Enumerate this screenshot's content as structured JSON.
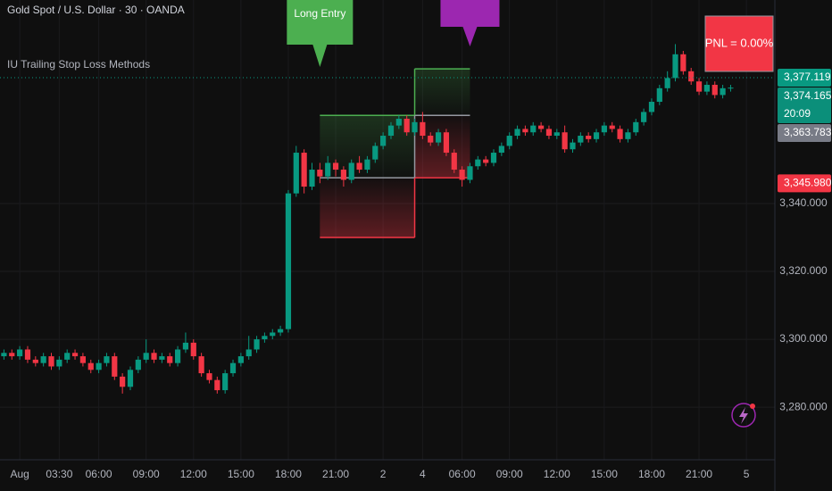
{
  "chart_data": {
    "type": "candlestick",
    "title": "Gold Spot / U.S. Dollar · 30 · OANDA",
    "indicator": "IU Trailing Stop Loss Methods",
    "up_color": "#089981",
    "down_color": "#f23645",
    "open": [
      3295,
      3296,
      3295,
      3297,
      3294,
      3293,
      3295,
      3292,
      3294,
      3296,
      3295,
      3293,
      3291,
      3293,
      3295,
      3289,
      3286,
      3291,
      3294,
      3296,
      3294,
      3295,
      3293,
      3297,
      3299,
      3295,
      3290,
      3288,
      3285,
      3290,
      3293,
      3295,
      3297,
      3300,
      3301,
      3302,
      3303,
      3343,
      3355,
      3345,
      3350,
      3348,
      3352,
      3350,
      3347,
      3352,
      3350,
      3353,
      3357,
      3360,
      3363,
      3365,
      3361,
      3364,
      3360,
      3358,
      3361,
      3355,
      3350,
      3347,
      3351,
      3353,
      3352,
      3355,
      3357,
      3360,
      3362,
      3361,
      3363,
      3362,
      3360,
      3361,
      3356,
      3358,
      3360,
      3359,
      3361,
      3363,
      3362,
      3359,
      3361,
      3364,
      3367,
      3370,
      3374,
      3377,
      3384,
      3379,
      3376,
      3373,
      3375,
      3372,
      3374
    ],
    "high": [
      3297,
      3297,
      3298,
      3298,
      3295,
      3296,
      3296,
      3295,
      3297,
      3297,
      3296,
      3294,
      3294,
      3296,
      3296,
      3290,
      3292,
      3295,
      3300,
      3297,
      3296,
      3296,
      3298,
      3302,
      3300,
      3296,
      3291,
      3289,
      3291,
      3294,
      3296,
      3301,
      3301,
      3302,
      3303,
      3304,
      3344,
      3357,
      3356,
      3352,
      3352,
      3354,
      3353,
      3351,
      3353,
      3354,
      3354,
      3358,
      3361,
      3364,
      3366,
      3366,
      3365,
      3367,
      3361,
      3362,
      3362,
      3356,
      3351,
      3352,
      3354,
      3354,
      3356,
      3358,
      3361,
      3363,
      3363,
      3364,
      3364,
      3363,
      3362,
      3363,
      3359,
      3361,
      3361,
      3362,
      3364,
      3364,
      3363,
      3362,
      3365,
      3368,
      3371,
      3375,
      3379,
      3387,
      3385,
      3380,
      3377,
      3376,
      3376,
      3375,
      3375
    ],
    "low": [
      3294,
      3294,
      3294,
      3293,
      3292,
      3292,
      3291,
      3291,
      3293,
      3294,
      3292,
      3290,
      3290,
      3292,
      3288,
      3284,
      3285,
      3290,
      3293,
      3293,
      3293,
      3292,
      3292,
      3296,
      3294,
      3289,
      3287,
      3284,
      3284,
      3289,
      3292,
      3294,
      3296,
      3299,
      3300,
      3301,
      3302,
      3342,
      3343,
      3344,
      3346,
      3347,
      3348,
      3345,
      3346,
      3349,
      3349,
      3352,
      3356,
      3359,
      3362,
      3360,
      3360,
      3359,
      3357,
      3357,
      3354,
      3349,
      3345,
      3346,
      3350,
      3351,
      3351,
      3354,
      3356,
      3359,
      3360,
      3360,
      3361,
      3359,
      3359,
      3355,
      3355,
      3357,
      3358,
      3358,
      3360,
      3361,
      3358,
      3358,
      3360,
      3363,
      3366,
      3369,
      3373,
      3376,
      3378,
      3375,
      3372,
      3372,
      3371,
      3371,
      3373
    ],
    "close": [
      3296,
      3295,
      3297,
      3294,
      3293,
      3295,
      3292,
      3294,
      3296,
      3295,
      3293,
      3291,
      3293,
      3295,
      3289,
      3286,
      3291,
      3294,
      3296,
      3294,
      3295,
      3293,
      3297,
      3299,
      3295,
      3290,
      3288,
      3285,
      3290,
      3293,
      3295,
      3297,
      3300,
      3301,
      3302,
      3303,
      3343,
      3355,
      3345,
      3350,
      3348,
      3352,
      3350,
      3347,
      3352,
      3350,
      3353,
      3357,
      3360,
      3363,
      3365,
      3361,
      3364,
      3360,
      3358,
      3361,
      3355,
      3350,
      3347,
      3351,
      3353,
      3352,
      3355,
      3357,
      3360,
      3362,
      3361,
      3363,
      3362,
      3360,
      3361,
      3356,
      3358,
      3360,
      3359,
      3361,
      3363,
      3362,
      3359,
      3361,
      3364,
      3367,
      3370,
      3374,
      3377,
      3384,
      3379,
      3376,
      3373,
      3375,
      3372,
      3374,
      3374.165
    ],
    "xlim": [
      -0.5,
      97.6
    ],
    "xticks": [
      {
        "value": 2,
        "label": "Aug"
      },
      {
        "value": 7,
        "label": "03:30"
      },
      {
        "value": 12,
        "label": "06:00"
      },
      {
        "value": 18,
        "label": "09:00"
      },
      {
        "value": 24,
        "label": "12:00"
      },
      {
        "value": 30,
        "label": "15:00"
      },
      {
        "value": 36,
        "label": "18:00"
      },
      {
        "value": 42,
        "label": "21:00"
      },
      {
        "value": 48,
        "label": "2"
      },
      {
        "value": 53,
        "label": "4"
      },
      {
        "value": 58,
        "label": "06:00"
      },
      {
        "value": 64,
        "label": "09:00"
      },
      {
        "value": 70,
        "label": "12:00"
      },
      {
        "value": 76,
        "label": "15:00"
      },
      {
        "value": 82,
        "label": "18:00"
      },
      {
        "value": 88,
        "label": "21:00"
      },
      {
        "value": 94,
        "label": "5"
      }
    ],
    "ylim": [
      3264.5,
      3400
    ],
    "yticks": [
      {
        "value": 3280,
        "label": "3,280.000"
      },
      {
        "value": 3300,
        "label": "3,300.000"
      },
      {
        "value": 3320,
        "label": "3,320.000"
      },
      {
        "value": 3340,
        "label": "3,340.000"
      }
    ],
    "grid": true,
    "price_line": 3377.119,
    "price_tags": [
      {
        "value": 3377.119,
        "label": "3,377.119",
        "color": "#089981"
      },
      {
        "value": 3374.165,
        "label": "3,374.165",
        "color": "#0b8f7a",
        "countdown": "20:09"
      },
      {
        "value": 3363.783,
        "label": "3,363.783",
        "color": "#787b86"
      },
      {
        "value": 3345.98,
        "label": "3,345.980",
        "color": "#f23645"
      }
    ],
    "trade_zones": [
      {
        "start": 40,
        "end": 52,
        "target": 3366,
        "entry": 3347.6,
        "stop": 3330
      },
      {
        "start": 52,
        "end": 59,
        "target": 3379.7,
        "entry": 3366,
        "stop": 3347.6
      }
    ],
    "annotations": [
      {
        "text": "Long Entry",
        "color": "#4caf50",
        "index": 40
      },
      {
        "color": "#9c27b0",
        "index": 59
      }
    ],
    "pnl": "PNL = 0.00%"
  }
}
